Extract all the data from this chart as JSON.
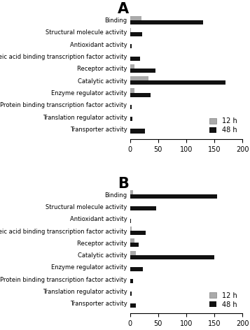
{
  "categories": [
    "Binding",
    "Structural molecule activity",
    "Antioxidant activity",
    "Nucleic acid binding transcription factor activity",
    "Receptor activity",
    "Catalytic activity",
    "Enzyme regulator activity",
    "Protein binding transcription factor activity",
    "Translation regulator activity",
    "Transporter activity"
  ],
  "panel_A": {
    "label": "A",
    "h12": [
      20,
      2,
      0,
      0,
      8,
      33,
      8,
      0,
      0,
      0
    ],
    "h48": [
      130,
      22,
      3,
      18,
      45,
      170,
      37,
      3,
      4,
      27
    ]
  },
  "panel_B": {
    "label": "B",
    "h12": [
      5,
      0,
      0,
      3,
      8,
      10,
      0,
      0,
      0,
      0
    ],
    "h48": [
      155,
      47,
      2,
      28,
      15,
      150,
      23,
      5,
      3,
      10
    ]
  },
  "xlim": [
    0,
    200
  ],
  "xticks": [
    0,
    50,
    100,
    150,
    200
  ],
  "color_12h": "#aaaaaa",
  "color_48h": "#111111",
  "legend_12h": "12 h",
  "legend_48h": "48 h",
  "bar_height": 0.35,
  "label_fontsize": 6.0,
  "tick_fontsize": 7,
  "legend_fontsize": 7,
  "panel_label_fontsize": 15
}
